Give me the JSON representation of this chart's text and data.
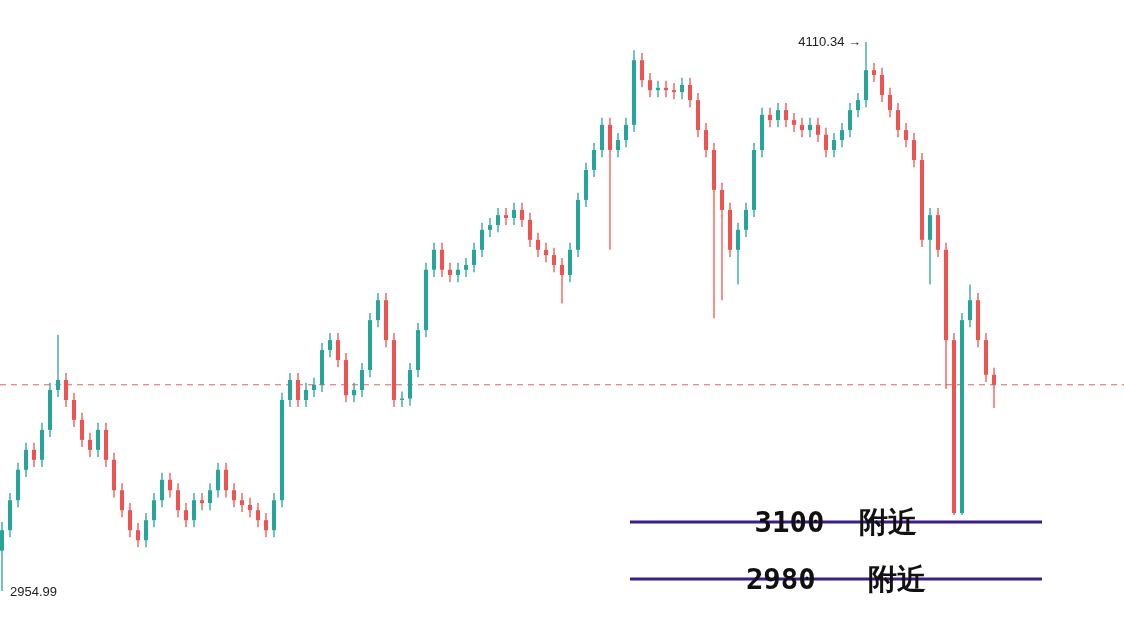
{
  "chart_data": {
    "type": "candlestick",
    "categories": [
      null,
      null,
      null,
      null,
      null,
      null,
      null,
      null,
      null,
      null,
      null,
      null,
      null,
      null,
      null,
      null,
      null,
      null,
      null,
      null,
      null,
      null,
      null,
      null,
      null,
      null,
      null,
      null,
      null,
      null,
      null,
      null,
      null,
      null,
      null,
      null,
      null,
      null,
      null,
      null,
      null,
      null,
      null,
      null,
      null,
      null,
      null,
      null,
      null,
      null,
      null,
      null,
      null,
      null,
      null,
      null,
      null,
      null,
      null,
      null,
      null,
      null,
      null,
      null,
      null,
      null,
      null,
      null,
      null,
      null,
      null,
      null,
      null,
      null,
      null,
      null,
      null,
      null,
      null,
      null,
      null,
      null,
      null,
      null,
      null,
      null,
      null,
      null,
      null,
      null,
      null,
      null,
      null,
      null,
      null,
      null,
      null,
      null,
      null,
      null,
      null,
      null,
      null,
      null,
      null,
      null,
      null,
      null,
      null,
      null,
      null,
      null,
      null,
      null,
      null,
      null,
      null,
      null,
      null,
      null,
      null,
      null,
      null,
      null,
      null
    ],
    "ohlc": [
      [
        3040,
        3100,
        2954.99,
        3083
      ],
      [
        3083,
        3161,
        3068,
        3146
      ],
      [
        3146,
        3225,
        3131,
        3210
      ],
      [
        3210,
        3267,
        3195,
        3252
      ],
      [
        3252,
        3267,
        3216,
        3231
      ],
      [
        3231,
        3309,
        3216,
        3294
      ],
      [
        3294,
        3393,
        3279,
        3378
      ],
      [
        3378,
        3494,
        3363,
        3399
      ],
      [
        3399,
        3414,
        3342,
        3357
      ],
      [
        3357,
        3372,
        3300,
        3315
      ],
      [
        3315,
        3330,
        3258,
        3273
      ],
      [
        3273,
        3288,
        3237,
        3252
      ],
      [
        3252,
        3309,
        3237,
        3294
      ],
      [
        3294,
        3309,
        3216,
        3231
      ],
      [
        3231,
        3246,
        3152,
        3167
      ],
      [
        3167,
        3182,
        3110,
        3125
      ],
      [
        3125,
        3140,
        3068,
        3083
      ],
      [
        3083,
        3098,
        3047,
        3062
      ],
      [
        3062,
        3119,
        3047,
        3104
      ],
      [
        3104,
        3161,
        3089,
        3146
      ],
      [
        3146,
        3204,
        3131,
        3189
      ],
      [
        3189,
        3204,
        3152,
        3167
      ],
      [
        3167,
        3182,
        3110,
        3125
      ],
      [
        3125,
        3140,
        3089,
        3104
      ],
      [
        3104,
        3161,
        3089,
        3146
      ],
      [
        3146,
        3161,
        3125,
        3140
      ],
      [
        3140,
        3182,
        3125,
        3167
      ],
      [
        3167,
        3225,
        3152,
        3210
      ],
      [
        3210,
        3225,
        3152,
        3167
      ],
      [
        3167,
        3182,
        3131,
        3146
      ],
      [
        3146,
        3161,
        3121,
        3136
      ],
      [
        3136,
        3151,
        3110,
        3125
      ],
      [
        3125,
        3140,
        3089,
        3104
      ],
      [
        3104,
        3119,
        3068,
        3083
      ],
      [
        3083,
        3161,
        3068,
        3146
      ],
      [
        3146,
        3372,
        3131,
        3357
      ],
      [
        3357,
        3414,
        3342,
        3399
      ],
      [
        3399,
        3414,
        3342,
        3357
      ],
      [
        3357,
        3393,
        3342,
        3378
      ],
      [
        3378,
        3404,
        3363,
        3389
      ],
      [
        3389,
        3477,
        3374,
        3462
      ],
      [
        3462,
        3498,
        3447,
        3483
      ],
      [
        3483,
        3498,
        3426,
        3441
      ],
      [
        3441,
        3456,
        3352,
        3367
      ],
      [
        3367,
        3393,
        3352,
        3378
      ],
      [
        3378,
        3435,
        3363,
        3420
      ],
      [
        3420,
        3540,
        3405,
        3525
      ],
      [
        3525,
        3582,
        3510,
        3567
      ],
      [
        3567,
        3582,
        3468,
        3483
      ],
      [
        3483,
        3498,
        3342,
        3357
      ],
      [
        3357,
        3375,
        3342,
        3360
      ],
      [
        3360,
        3435,
        3345,
        3420
      ],
      [
        3420,
        3519,
        3405,
        3504
      ],
      [
        3504,
        3646,
        3489,
        3631
      ],
      [
        3631,
        3688,
        3616,
        3673
      ],
      [
        3673,
        3688,
        3616,
        3631
      ],
      [
        3631,
        3646,
        3605,
        3620
      ],
      [
        3620,
        3646,
        3605,
        3631
      ],
      [
        3631,
        3656,
        3616,
        3641
      ],
      [
        3641,
        3688,
        3626,
        3673
      ],
      [
        3673,
        3730,
        3658,
        3715
      ],
      [
        3715,
        3740,
        3700,
        3725
      ],
      [
        3725,
        3761,
        3710,
        3746
      ],
      [
        3746,
        3761,
        3725,
        3740
      ],
      [
        3740,
        3772,
        3725,
        3757
      ],
      [
        3757,
        3772,
        3721,
        3736
      ],
      [
        3736,
        3751,
        3679,
        3694
      ],
      [
        3694,
        3709,
        3658,
        3673
      ],
      [
        3673,
        3688,
        3647,
        3662
      ],
      [
        3662,
        3677,
        3626,
        3641
      ],
      [
        3641,
        3656,
        3560,
        3620
      ],
      [
        3620,
        3688,
        3605,
        3673
      ],
      [
        3673,
        3793,
        3658,
        3778
      ],
      [
        3778,
        3856,
        3763,
        3841
      ],
      [
        3841,
        3898,
        3826,
        3883
      ],
      [
        3883,
        3951,
        3868,
        3936
      ],
      [
        3936,
        3951,
        3673,
        3883
      ],
      [
        3883,
        3919,
        3868,
        3904
      ],
      [
        3904,
        3951,
        3889,
        3936
      ],
      [
        3936,
        4093,
        3921,
        4072
      ],
      [
        4072,
        4087,
        4015,
        4030
      ],
      [
        4030,
        4045,
        3994,
        4009
      ],
      [
        4009,
        4029,
        3994,
        4014
      ],
      [
        4014,
        4029,
        3994,
        4009
      ],
      [
        4009,
        4024,
        3990,
        4005
      ],
      [
        4005,
        4035,
        3990,
        4020
      ],
      [
        4020,
        4035,
        3973,
        3988
      ],
      [
        3988,
        4003,
        3910,
        3925
      ],
      [
        3925,
        3940,
        3868,
        3883
      ],
      [
        3883,
        3898,
        3529,
        3799
      ],
      [
        3799,
        3814,
        3567,
        3757
      ],
      [
        3757,
        3772,
        3658,
        3673
      ],
      [
        3673,
        3730,
        3600,
        3715
      ],
      [
        3715,
        3772,
        3700,
        3757
      ],
      [
        3757,
        3898,
        3742,
        3883
      ],
      [
        3883,
        3972,
        3868,
        3957
      ],
      [
        3957,
        3972,
        3931,
        3946
      ],
      [
        3946,
        3982,
        3931,
        3967
      ],
      [
        3967,
        3982,
        3931,
        3946
      ],
      [
        3946,
        3961,
        3921,
        3936
      ],
      [
        3936,
        3951,
        3910,
        3925
      ],
      [
        3925,
        3951,
        3910,
        3936
      ],
      [
        3936,
        3951,
        3900,
        3915
      ],
      [
        3915,
        3930,
        3868,
        3883
      ],
      [
        3883,
        3919,
        3868,
        3904
      ],
      [
        3904,
        3940,
        3889,
        3925
      ],
      [
        3925,
        3982,
        3910,
        3967
      ],
      [
        3967,
        4003,
        3952,
        3988
      ],
      [
        3988,
        4110.34,
        3973,
        4051
      ],
      [
        4051,
        4066,
        4026,
        4041
      ],
      [
        4041,
        4056,
        3984,
        3999
      ],
      [
        3999,
        4014,
        3952,
        3967
      ],
      [
        3967,
        3982,
        3910,
        3925
      ],
      [
        3925,
        3940,
        3889,
        3904
      ],
      [
        3904,
        3919,
        3847,
        3862
      ],
      [
        3862,
        3877,
        3679,
        3694
      ],
      [
        3694,
        3761,
        3600,
        3746
      ],
      [
        3746,
        3761,
        3658,
        3673
      ],
      [
        3673,
        3688,
        3380,
        3483
      ],
      [
        3483,
        3498,
        3115,
        3119
      ],
      [
        3119,
        3540,
        3115,
        3525
      ],
      [
        3525,
        3600,
        3510,
        3567
      ],
      [
        3567,
        3582,
        3468,
        3483
      ],
      [
        3483,
        3498,
        3395,
        3410
      ],
      [
        3410,
        3425,
        3340,
        3389
      ]
    ],
    "annotations": [
      "4110.34 →",
      "2954.99"
    ],
    "ref_lines": [
      {
        "axis": "y",
        "value": 3389,
        "color": "#e06666",
        "line_style": "dashed"
      },
      {
        "axis": "y",
        "value": 3100,
        "label": "3100  附近",
        "color": "#3b1f86",
        "line_style": "solid"
      },
      {
        "axis": "y",
        "value": 2980,
        "label": "2980   附近",
        "color": "#3b1f86",
        "line_style": "solid"
      }
    ]
  }
}
